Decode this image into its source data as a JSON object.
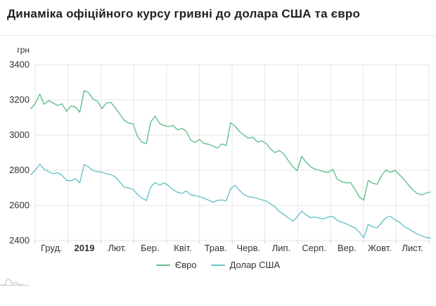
{
  "page": {
    "title": "Динаміка офіційного курсу гривні до долара США та євро"
  },
  "colors": {
    "euro_line": "#62c08e",
    "usd_line": "#68c4ca",
    "grid": "#e6e6e6",
    "axis_text": "#333333",
    "title_text": "#212121",
    "divider": "#e9e9e9",
    "mini_nav": "#c9c9c9"
  },
  "chart_data": {
    "type": "line",
    "title": "Динаміка офіційного курсу гривні до долара США та євро",
    "ylabel": "грн",
    "y_ticks": [
      3400,
      3200,
      3000,
      2800,
      2600,
      2400
    ],
    "ylim": [
      2400,
      3400
    ],
    "grid": true,
    "legend_position": "bottom-center",
    "x_labels": [
      {
        "t": "Груд.",
        "b": false
      },
      {
        "t": "2019",
        "b": true
      },
      {
        "t": "Лют.",
        "b": false
      },
      {
        "t": "Бер.",
        "b": false
      },
      {
        "t": "Квіт.",
        "b": false
      },
      {
        "t": "Трав.",
        "b": false
      },
      {
        "t": "Черв.",
        "b": false
      },
      {
        "t": "Лип.",
        "b": false
      },
      {
        "t": "Серп.",
        "b": false
      },
      {
        "t": "Вер.",
        "b": false
      },
      {
        "t": "Жовт.",
        "b": false
      },
      {
        "t": "Лист.",
        "b": false
      }
    ],
    "series": [
      {
        "name": "Євро",
        "color": "#62c08e",
        "values": [
          3150,
          3180,
          3233,
          3175,
          3196,
          3182,
          3168,
          3178,
          3135,
          3165,
          3160,
          3130,
          3253,
          3240,
          3205,
          3192,
          3150,
          3183,
          3186,
          3155,
          3120,
          3085,
          3068,
          3065,
          2992,
          2960,
          2950,
          3075,
          3108,
          3065,
          3055,
          3048,
          3055,
          3030,
          3038,
          3022,
          2970,
          2958,
          2975,
          2952,
          2948,
          2938,
          2925,
          2950,
          2940,
          3070,
          3050,
          3020,
          3000,
          2982,
          2988,
          2960,
          2968,
          2952,
          2920,
          2900,
          2912,
          2892,
          2855,
          2820,
          2798,
          2880,
          2846,
          2820,
          2806,
          2800,
          2792,
          2788,
          2806,
          2750,
          2735,
          2728,
          2730,
          2692,
          2648,
          2630,
          2742,
          2726,
          2720,
          2770,
          2802,
          2788,
          2800,
          2775,
          2750,
          2718,
          2690,
          2668,
          2660,
          2670,
          2676
        ]
      },
      {
        "name": "Долар США",
        "color": "#68c4ca",
        "values": [
          2775,
          2802,
          2835,
          2806,
          2792,
          2780,
          2786,
          2772,
          2742,
          2740,
          2752,
          2728,
          2833,
          2818,
          2798,
          2792,
          2788,
          2780,
          2775,
          2763,
          2735,
          2703,
          2700,
          2692,
          2662,
          2642,
          2628,
          2705,
          2730,
          2715,
          2728,
          2712,
          2690,
          2675,
          2668,
          2682,
          2660,
          2656,
          2650,
          2641,
          2630,
          2618,
          2629,
          2631,
          2627,
          2695,
          2715,
          2685,
          2662,
          2650,
          2646,
          2640,
          2632,
          2625,
          2608,
          2592,
          2565,
          2548,
          2530,
          2510,
          2535,
          2568,
          2546,
          2530,
          2534,
          2528,
          2524,
          2534,
          2537,
          2516,
          2505,
          2496,
          2483,
          2473,
          2448,
          2416,
          2492,
          2478,
          2472,
          2502,
          2530,
          2538,
          2518,
          2505,
          2482,
          2468,
          2452,
          2438,
          2428,
          2418,
          2414
        ]
      }
    ]
  }
}
